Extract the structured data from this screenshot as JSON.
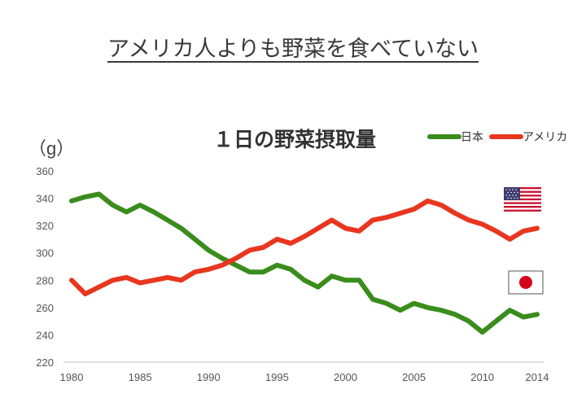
{
  "slide": {
    "title": "アメリカ人よりも野菜を食べていない"
  },
  "chart_data": {
    "type": "line",
    "title": "１日の野菜摂取量",
    "ylabel": "（g）",
    "xlabel": "",
    "ylim": [
      220,
      360
    ],
    "xlim": [
      1980,
      2014
    ],
    "yticks": [
      220,
      240,
      260,
      280,
      300,
      320,
      340,
      360
    ],
    "xticks": [
      1980,
      1985,
      1990,
      1995,
      2000,
      2005,
      2010,
      2014
    ],
    "legend_position": "top-right",
    "grid": false,
    "series": [
      {
        "name": "日本",
        "color": "#3a8d1c",
        "x": [
          1980,
          1981,
          1982,
          1983,
          1984,
          1985,
          1986,
          1987,
          1988,
          1989,
          1990,
          1991,
          1992,
          1993,
          1994,
          1995,
          1996,
          1997,
          1998,
          1999,
          2000,
          2001,
          2002,
          2003,
          2004,
          2005,
          2006,
          2007,
          2008,
          2009,
          2010,
          2011,
          2012,
          2013,
          2014
        ],
        "values": [
          338,
          341,
          343,
          335,
          330,
          335,
          330,
          324,
          318,
          310,
          302,
          296,
          291,
          286,
          286,
          291,
          288,
          280,
          275,
          283,
          280,
          280,
          266,
          263,
          258,
          263,
          260,
          258,
          255,
          250,
          242,
          250,
          258,
          253,
          255
        ]
      },
      {
        "name": "アメリカ",
        "color": "#e8361f",
        "x": [
          1980,
          1981,
          1982,
          1983,
          1984,
          1985,
          1986,
          1987,
          1988,
          1989,
          1990,
          1991,
          1992,
          1993,
          1994,
          1995,
          1996,
          1997,
          1998,
          1999,
          2000,
          2001,
          2002,
          2003,
          2004,
          2005,
          2006,
          2007,
          2008,
          2009,
          2010,
          2011,
          2012,
          2013,
          2014
        ],
        "values": [
          280,
          270,
          275,
          280,
          282,
          278,
          280,
          282,
          280,
          286,
          288,
          291,
          296,
          302,
          304,
          310,
          307,
          312,
          318,
          324,
          318,
          316,
          324,
          326,
          329,
          332,
          338,
          335,
          329,
          324,
          321,
          316,
          310,
          316,
          318
        ]
      }
    ],
    "annotations": [
      {
        "type": "flag",
        "country": "USA",
        "near_series": "アメリカ"
      },
      {
        "type": "flag",
        "country": "Japan",
        "near_series": "日本"
      }
    ]
  }
}
